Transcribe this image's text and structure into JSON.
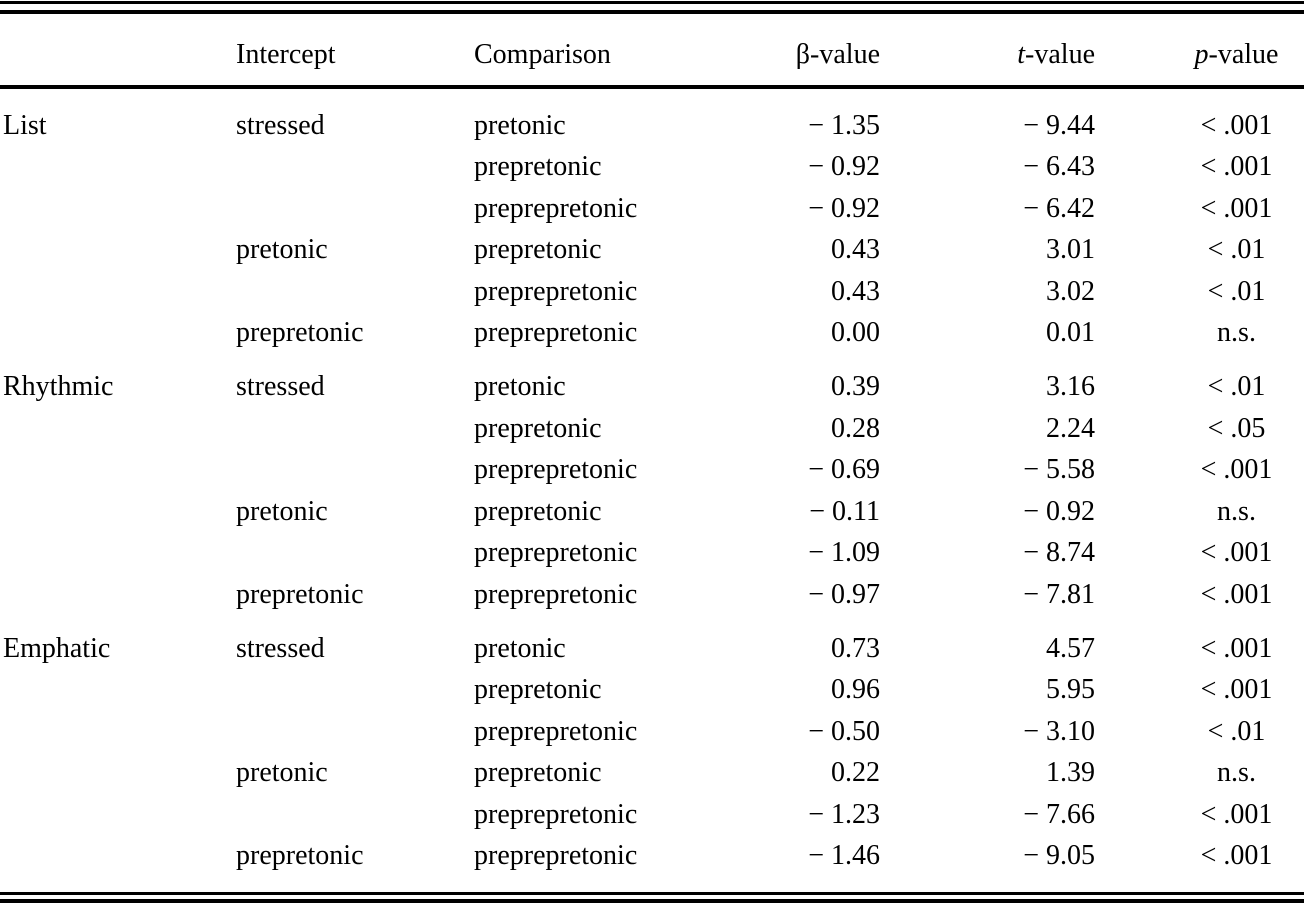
{
  "page": {
    "background_color": "#ffffff",
    "text_color": "#000000"
  },
  "table": {
    "header": {
      "group": "",
      "intercept": "Intercept",
      "comparison": "Comparison",
      "beta": {
        "symbol": "β",
        "suffix": "-value"
      },
      "t": {
        "symbol": "t",
        "suffix": "-value"
      },
      "p": {
        "symbol": "p",
        "suffix": "-value"
      }
    },
    "rows": [
      {
        "group": "List",
        "intercept": "stressed",
        "comparison": "pretonic",
        "beta": "− 1.35",
        "t": "− 9.44",
        "p": "< .001",
        "section_start": true
      },
      {
        "group": "",
        "intercept": "",
        "comparison": "prepretonic",
        "beta": "− 0.92",
        "t": "− 6.43",
        "p": "< .001"
      },
      {
        "group": "",
        "intercept": "",
        "comparison": "preprepretonic",
        "beta": "− 0.92",
        "t": "− 6.42",
        "p": "< .001"
      },
      {
        "group": "",
        "intercept": "pretonic",
        "comparison": "prepretonic",
        "beta": "0.43",
        "t": "3.01",
        "p": "< .01"
      },
      {
        "group": "",
        "intercept": "",
        "comparison": "preprepretonic",
        "beta": "0.43",
        "t": "3.02",
        "p": "< .01"
      },
      {
        "group": "",
        "intercept": "prepretonic",
        "comparison": "preprepretonic",
        "beta": "0.00",
        "t": "0.01",
        "p": "n.s."
      },
      {
        "group": "Rhythmic",
        "intercept": "stressed",
        "comparison": "pretonic",
        "beta": "0.39",
        "t": "3.16",
        "p": "< .01",
        "section_start": true
      },
      {
        "group": "",
        "intercept": "",
        "comparison": "prepretonic",
        "beta": "0.28",
        "t": "2.24",
        "p": "< .05"
      },
      {
        "group": "",
        "intercept": "",
        "comparison": "preprepretonic",
        "beta": "− 0.69",
        "t": "− 5.58",
        "p": "< .001"
      },
      {
        "group": "",
        "intercept": "pretonic",
        "comparison": "prepretonic",
        "beta": "− 0.11",
        "t": "− 0.92",
        "p": "n.s."
      },
      {
        "group": "",
        "intercept": "",
        "comparison": "preprepretonic",
        "beta": "− 1.09",
        "t": "− 8.74",
        "p": "< .001"
      },
      {
        "group": "",
        "intercept": "prepretonic",
        "comparison": "preprepretonic",
        "beta": "− 0.97",
        "t": "− 7.81",
        "p": "< .001"
      },
      {
        "group": "Emphatic",
        "intercept": "stressed",
        "comparison": "pretonic",
        "beta": "0.73",
        "t": "4.57",
        "p": "< .001",
        "section_start": true
      },
      {
        "group": "",
        "intercept": "",
        "comparison": "prepretonic",
        "beta": "0.96",
        "t": "5.95",
        "p": "< .001"
      },
      {
        "group": "",
        "intercept": "",
        "comparison": "preprepretonic",
        "beta": "− 0.50",
        "t": "− 3.10",
        "p": "< .01"
      },
      {
        "group": "",
        "intercept": "pretonic",
        "comparison": "prepretonic",
        "beta": "0.22",
        "t": "1.39",
        "p": "n.s."
      },
      {
        "group": "",
        "intercept": "",
        "comparison": "preprepretonic",
        "beta": "− 1.23",
        "t": "− 7.66",
        "p": "< .001"
      },
      {
        "group": "",
        "intercept": "prepretonic",
        "comparison": "preprepretonic",
        "beta": "− 1.46",
        "t": "− 9.05",
        "p": "< .001"
      }
    ]
  },
  "chart_data": {
    "type": "table",
    "columns": [
      "",
      "Intercept",
      "Comparison",
      "β-value",
      "t-value",
      "p-value"
    ],
    "groups": [
      "List",
      "Rhythmic",
      "Emphatic"
    ]
  }
}
